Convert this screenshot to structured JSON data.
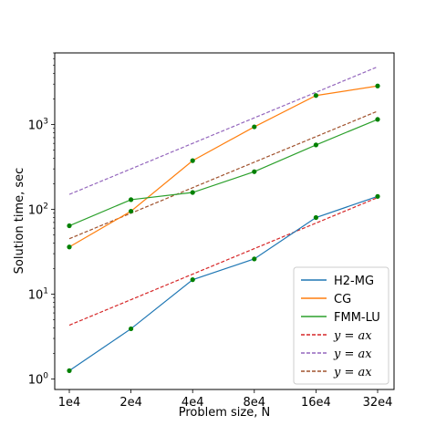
{
  "chart_data": {
    "type": "line",
    "xscale": "log2",
    "yscale": "log10",
    "x": [
      10000,
      20000,
      40000,
      80000,
      160000,
      320000
    ],
    "xticks": [
      "1e4",
      "2e4",
      "4e4",
      "8e4",
      "16e4",
      "32e4"
    ],
    "ylim": [
      0.75,
      7000
    ],
    "yticks": [
      {
        "value": 1,
        "base": "10",
        "exp": "0"
      },
      {
        "value": 10,
        "base": "10",
        "exp": "1"
      },
      {
        "value": 100,
        "base": "10",
        "exp": "2"
      },
      {
        "value": 1000,
        "base": "10",
        "exp": "3"
      }
    ],
    "xlabel": "Problem size, N",
    "ylabel": "Solution time, sec",
    "grid": false,
    "legend_position": "lower-right",
    "marker_color": "#008000",
    "series": [
      {
        "name": "H2-MG",
        "style": "solid",
        "color": "#1f77b4",
        "markers": true,
        "values": [
          1.25,
          3.9,
          14.8,
          26,
          80,
          142
        ]
      },
      {
        "name": "CG",
        "style": "solid",
        "color": "#ff7f0e",
        "markers": true,
        "values": [
          36,
          95,
          375,
          940,
          2200,
          2850
        ]
      },
      {
        "name": "FMM-LU",
        "style": "solid",
        "color": "#2ca02c",
        "markers": true,
        "values": [
          64,
          130,
          158,
          278,
          575,
          1150
        ]
      },
      {
        "name": "y = ax",
        "style": "dashed",
        "color": "#d62728",
        "markers": false,
        "values": [
          4.3,
          8.6,
          17.2,
          34.4,
          68.8,
          137.6
        ]
      },
      {
        "name": "y = ax",
        "style": "dashed",
        "color": "#9467bd",
        "markers": false,
        "values": [
          150,
          300,
          600,
          1200,
          2400,
          4800
        ]
      },
      {
        "name": "y = ax",
        "style": "dashed",
        "color": "#a0522d",
        "markers": false,
        "values": [
          45,
          90,
          180,
          360,
          720,
          1440
        ]
      }
    ]
  }
}
